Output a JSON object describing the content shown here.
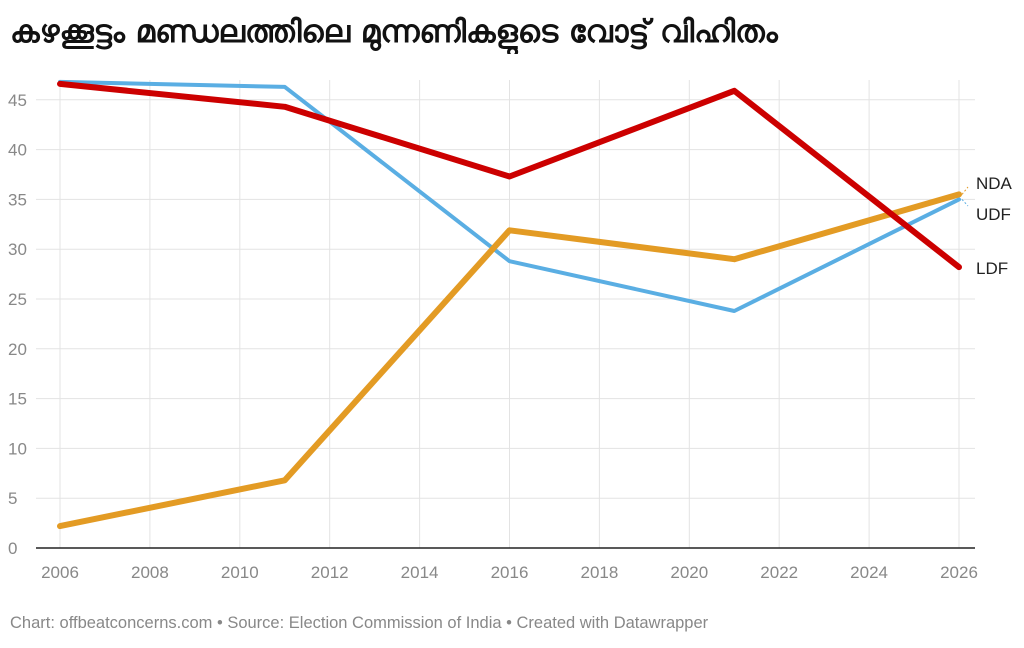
{
  "chart_data": {
    "type": "line",
    "title": "കഴക്കൂട്ടം മണ്ഡലത്തിലെ മുന്നണികളുടെ വോട്ട് വിഹിതം",
    "xlabel": "",
    "ylabel": "",
    "xlim": [
      2006,
      2026
    ],
    "ylim": [
      0,
      47
    ],
    "x_ticks": [
      2006,
      2008,
      2010,
      2012,
      2014,
      2016,
      2018,
      2020,
      2022,
      2024,
      2026
    ],
    "y_ticks": [
      0,
      5,
      10,
      15,
      20,
      25,
      30,
      35,
      40,
      45
    ],
    "grid": true,
    "legend": "direct labels at right end of lines",
    "series": [
      {
        "name": "UDF",
        "color": "#5aaee3",
        "points": [
          [
            2006,
            46.8
          ],
          [
            2011,
            46.3
          ],
          [
            2016,
            28.8
          ],
          [
            2021,
            23.8
          ],
          [
            2026,
            35.0
          ]
        ]
      },
      {
        "name": "LDF",
        "color": "#cc0000",
        "points": [
          [
            2006,
            46.6
          ],
          [
            2011,
            44.3
          ],
          [
            2016,
            37.3
          ],
          [
            2021,
            45.9
          ],
          [
            2026,
            28.2
          ]
        ]
      },
      {
        "name": "NDA",
        "color": "#e39b24",
        "points": [
          [
            2006,
            2.2
          ],
          [
            2011,
            6.8
          ],
          [
            2016,
            31.9
          ],
          [
            2021,
            29.0
          ],
          [
            2026,
            35.5
          ]
        ]
      }
    ]
  },
  "footer": "Chart: offbeatconcerns.com • Source: Election Commission of India • Created with Datawrapper"
}
